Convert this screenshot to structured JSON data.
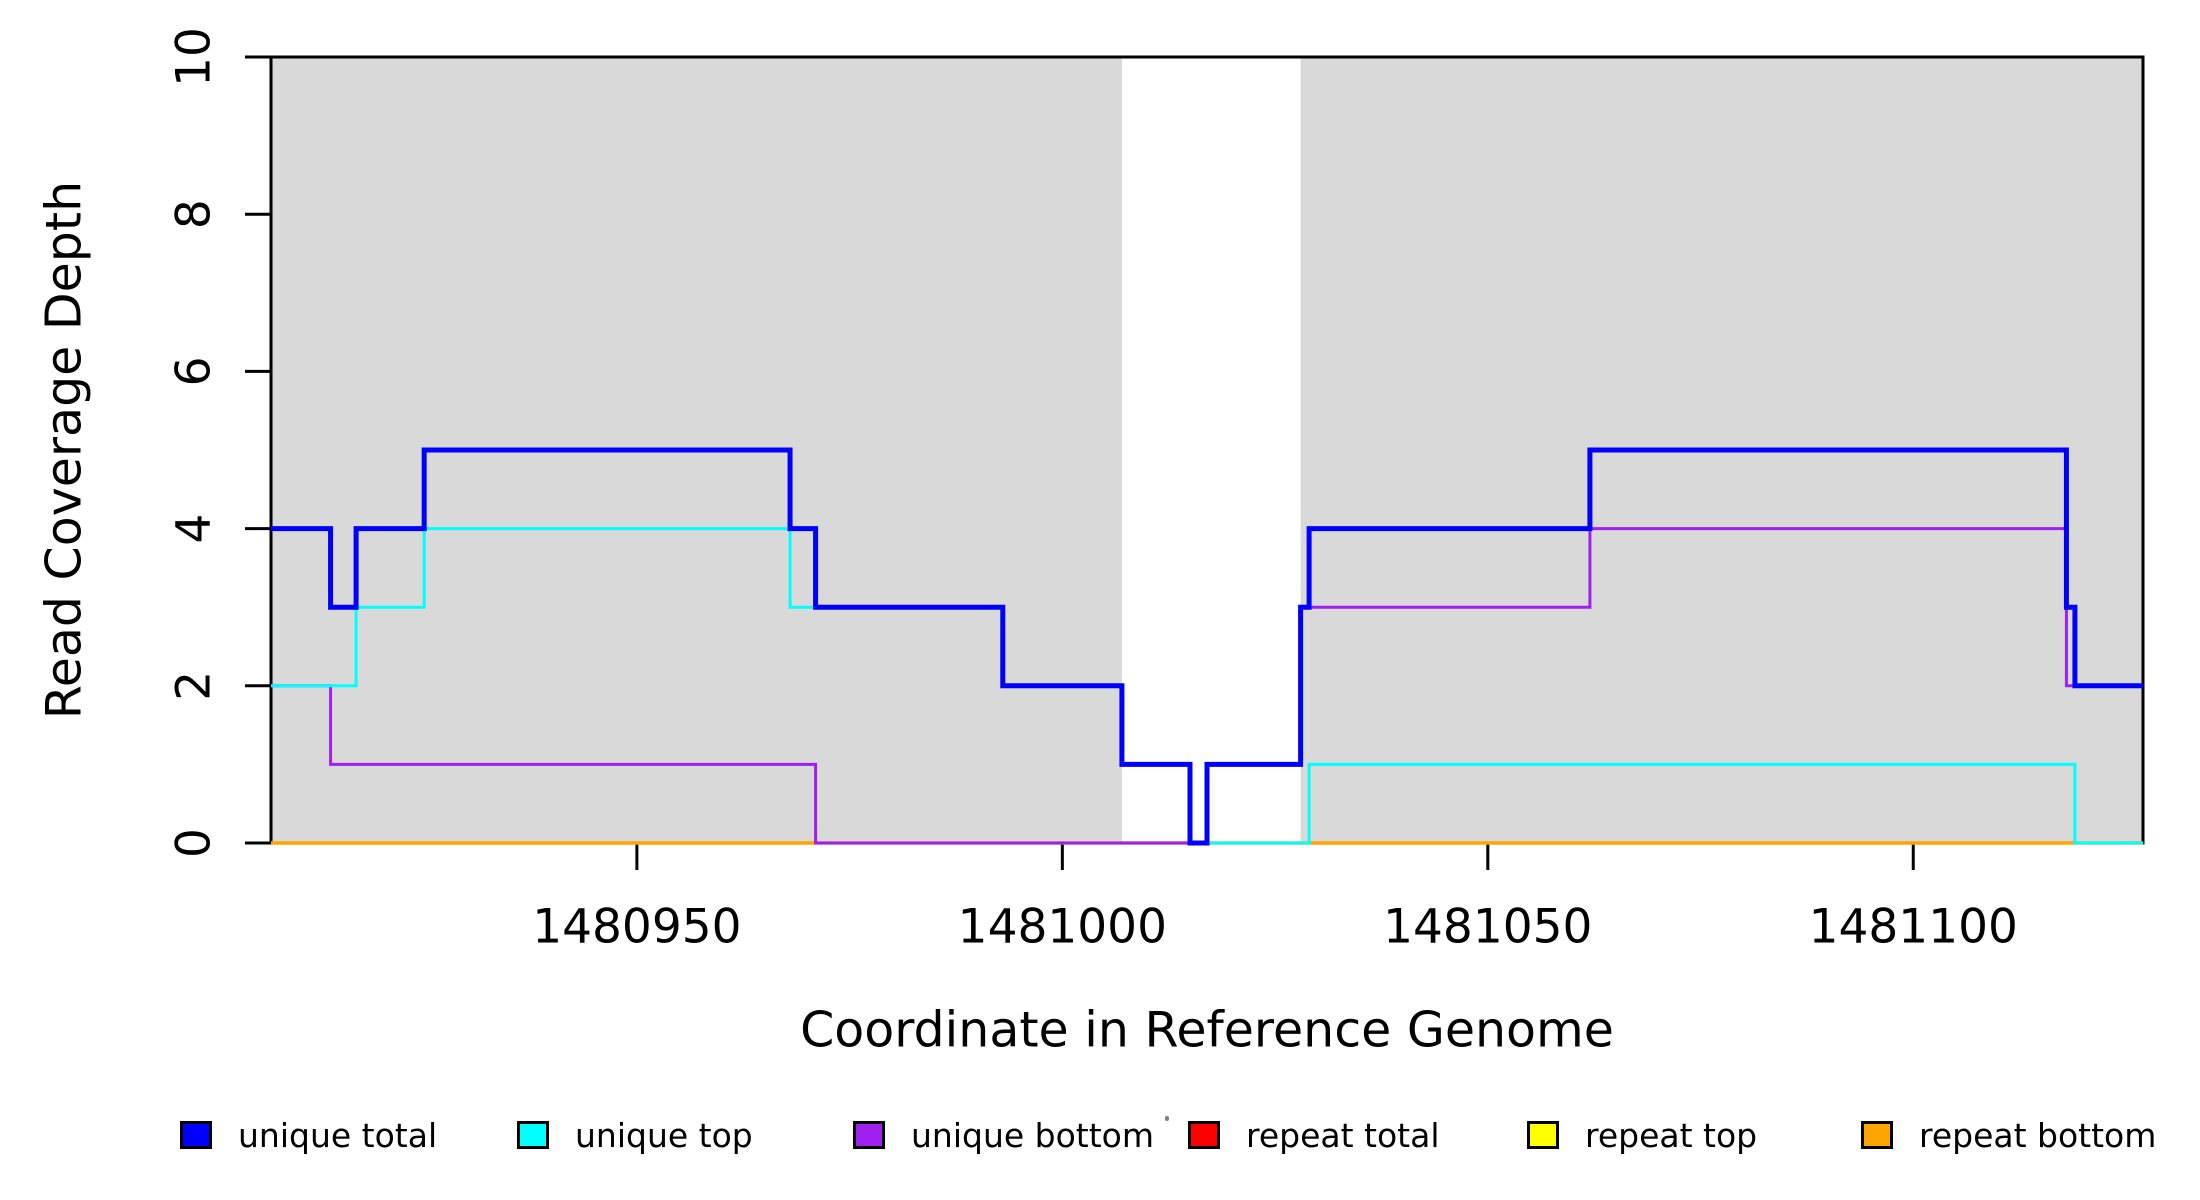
{
  "chart_data": {
    "type": "line",
    "subtype": "step-coverage",
    "title": "",
    "xlabel": "Coordinate in Reference Genome",
    "ylabel": "Read Coverage Depth",
    "xlim": [
      1480907,
      1481127
    ],
    "ylim": [
      0,
      10
    ],
    "x_ticks": [
      1480950,
      1481000,
      1481050,
      1481100
    ],
    "y_ticks": [
      0,
      2,
      4,
      6,
      8,
      10
    ],
    "grid": false,
    "plot_background": "#FFFFFF",
    "axis_color": "#000000",
    "background_regions": [
      {
        "name": "unique-region-left",
        "x0": 1480907,
        "x1": 1481007,
        "color": "#D9D9D9"
      },
      {
        "name": "unique-region-right",
        "x0": 1481028,
        "x1": 1481127,
        "color": "#D9D9D9"
      }
    ],
    "series": [
      {
        "name": "repeat total",
        "color": "#FF0000",
        "width": 3,
        "points": [
          [
            1480907,
            0
          ]
        ]
      },
      {
        "name": "repeat top",
        "color": "#FFFF00",
        "width": 3,
        "points": [
          [
            1480907,
            0
          ]
        ]
      },
      {
        "name": "repeat bottom",
        "color": "#FFA500",
        "width": 3.5,
        "points": [
          [
            1480907,
            0
          ]
        ]
      },
      {
        "name": "unique bottom",
        "color": "#A020F0",
        "width": 3,
        "points": [
          [
            1480907,
            2
          ],
          [
            1480914,
            1
          ],
          [
            1480971,
            0
          ],
          [
            1481017,
            1
          ],
          [
            1481028,
            3
          ],
          [
            1481062,
            4
          ],
          [
            1481118,
            2
          ]
        ]
      },
      {
        "name": "unique top",
        "color": "#00FFFF",
        "width": 3,
        "points": [
          [
            1480907,
            2
          ],
          [
            1480917,
            3
          ],
          [
            1480925,
            4
          ],
          [
            1480968,
            3
          ],
          [
            1480993,
            2
          ],
          [
            1481007,
            1
          ],
          [
            1481015,
            0
          ],
          [
            1481029,
            1
          ],
          [
            1481119,
            0
          ]
        ]
      },
      {
        "name": "unique total",
        "color": "#0000FF",
        "width": 5,
        "points": [
          [
            1480907,
            4
          ],
          [
            1480914,
            3
          ],
          [
            1480917,
            4
          ],
          [
            1480925,
            5
          ],
          [
            1480968,
            4
          ],
          [
            1480971,
            3
          ],
          [
            1480993,
            2
          ],
          [
            1481007,
            1
          ],
          [
            1481015,
            0
          ],
          [
            1481017,
            1
          ],
          [
            1481028,
            3
          ],
          [
            1481029,
            4
          ],
          [
            1481062,
            5
          ],
          [
            1481118,
            3
          ],
          [
            1481119,
            2
          ]
        ]
      }
    ],
    "legend_position": "bottom"
  },
  "legend": {
    "items": [
      {
        "label": "unique total",
        "color": "#0000FF"
      },
      {
        "label": "unique top",
        "color": "#00FFFF"
      },
      {
        "label": "unique bottom",
        "color": "#A020F0"
      },
      {
        "label": "repeat total",
        "color": "#FF0000"
      },
      {
        "label": "repeat top",
        "color": "#FFFF00"
      },
      {
        "label": "repeat bottom",
        "color": "#FFA500"
      }
    ]
  }
}
